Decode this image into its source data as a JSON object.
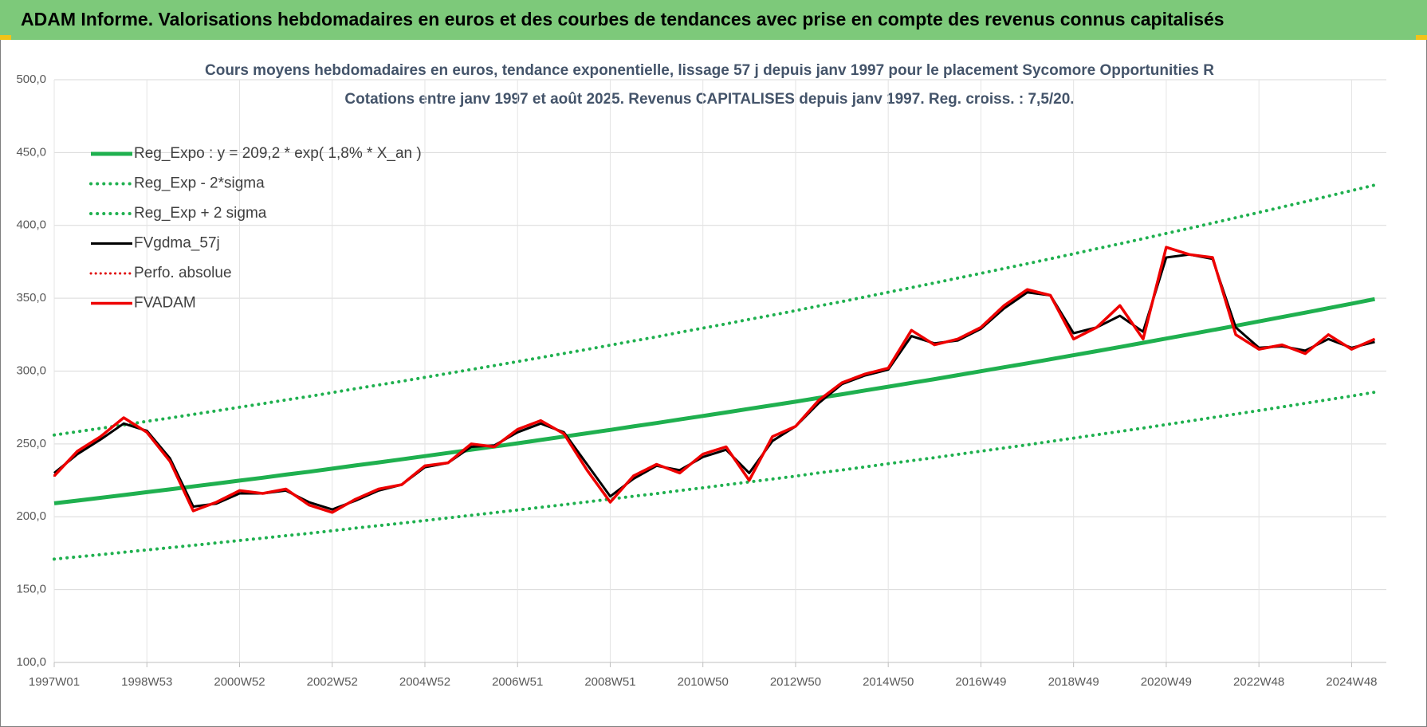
{
  "header": {
    "title": "ADAM Informe. Valorisations hebdomadaires en euros et des courbes de tendances avec prise en compte des revenus connus capitalisés"
  },
  "chart_data": {
    "type": "line",
    "title": "Cours moyens hebdomadaires en euros, tendance exponentielle, lissage 57 j depuis janv 1997  pour le placement Sycomore Opportunities R",
    "subtitle": "Cotations entre janv 1997 et août 2025.  Revenus CAPITALISES depuis janv 1997. Reg. croiss. : 7,5/20.",
    "categories": [
      "1997W01",
      null,
      null,
      null,
      "1998W53",
      null,
      null,
      null,
      "2000W52",
      null,
      null,
      null,
      "2002W52",
      null,
      null,
      null,
      "2004W52",
      null,
      null,
      null,
      "2006W51",
      null,
      null,
      null,
      "2008W51",
      null,
      null,
      null,
      "2010W50",
      null,
      null,
      null,
      "2012W50",
      null,
      null,
      null,
      "2014W50",
      null,
      null,
      null,
      "2016W49",
      null,
      null,
      null,
      "2018W49",
      null,
      null,
      null,
      "2020W49",
      null,
      null,
      null,
      "2022W48",
      null,
      null,
      null,
      "2024W48",
      null
    ],
    "ylim": [
      100,
      500
    ],
    "yticks": [
      {
        "value": 100,
        "label": "100,0"
      },
      {
        "value": 150,
        "label": "150,0"
      },
      {
        "value": 200,
        "label": "200,0"
      },
      {
        "value": 250,
        "label": "250,0"
      },
      {
        "value": 300,
        "label": "300,0"
      },
      {
        "value": 350,
        "label": "350,0"
      },
      {
        "value": 400,
        "label": "400,0"
      },
      {
        "value": 450,
        "label": "450,0"
      },
      {
        "value": 500,
        "label": "500,0"
      }
    ],
    "grid": true,
    "legend": "upper left",
    "series": [
      {
        "name": "Reg_Expo : y = 209,2 * exp( 1,8% *  X_an )",
        "color": "#1fb04f",
        "line_style": "solid",
        "width": 5,
        "values": [
          209.2,
          211.1,
          213.0,
          214.9,
          216.9,
          218.8,
          220.8,
          222.8,
          224.8,
          226.8,
          228.9,
          230.9,
          233.0,
          235.2,
          237.3,
          239.4,
          241.6,
          243.8,
          246.0,
          248.2,
          250.4,
          252.7,
          255.0,
          257.3,
          259.6,
          262.0,
          264.3,
          266.8,
          269.2,
          271.6,
          274.1,
          276.5,
          279.0,
          281.6,
          284.1,
          286.7,
          289.3,
          291.9,
          294.5,
          297.2,
          299.9,
          302.6,
          305.3,
          308.1,
          310.9,
          313.7,
          316.5,
          319.4,
          322.3,
          325.2,
          328.1,
          331.1,
          334.1,
          337.1,
          340.1,
          343.2,
          346.3,
          349.4
        ]
      },
      {
        "name": "Reg_Exp - 2*sigma",
        "color": "#1fb04f",
        "line_style": "dotted",
        "width": 4,
        "values": [
          170.9,
          172.5,
          174.0,
          175.6,
          177.2,
          178.8,
          180.4,
          182.0,
          183.7,
          185.3,
          187.0,
          188.6,
          190.4,
          192.2,
          193.9,
          195.6,
          197.4,
          199.2,
          201.0,
          202.8,
          204.6,
          206.5,
          208.3,
          210.2,
          212.1,
          214.1,
          215.9,
          218.0,
          219.9,
          221.9,
          223.9,
          225.9,
          227.9,
          230.1,
          232.1,
          234.2,
          236.4,
          238.5,
          240.6,
          242.8,
          245.0,
          247.2,
          249.4,
          251.7,
          254.0,
          256.3,
          258.6,
          260.9,
          263.3,
          265.7,
          268.1,
          270.5,
          272.9,
          275.4,
          277.9,
          280.4,
          282.9,
          285.5
        ]
      },
      {
        "name": "Reg_Exp + 2 sigma",
        "color": "#1fb04f",
        "line_style": "dotted",
        "width": 4,
        "values": [
          256.1,
          258.4,
          260.7,
          263.0,
          265.5,
          267.8,
          270.3,
          272.7,
          275.2,
          277.6,
          280.2,
          282.6,
          285.2,
          287.9,
          290.5,
          293.0,
          295.7,
          298.4,
          301.1,
          303.8,
          306.5,
          309.3,
          312.1,
          314.9,
          317.8,
          320.7,
          323.5,
          326.6,
          329.5,
          332.4,
          335.5,
          338.4,
          341.5,
          344.7,
          347.7,
          350.9,
          354.1,
          357.3,
          360.5,
          363.8,
          367.1,
          370.4,
          373.7,
          377.1,
          380.5,
          384.0,
          387.4,
          390.9,
          394.5,
          398.0,
          401.6,
          405.3,
          408.9,
          412.6,
          416.3,
          420.1,
          423.9,
          427.7
        ]
      },
      {
        "name": "FVgdma_57j",
        "color": "#000000",
        "line_style": "solid",
        "width": 3,
        "values": [
          230,
          243,
          253,
          264,
          259,
          240,
          207,
          209,
          216,
          216,
          218,
          210,
          205,
          211,
          218,
          222,
          234,
          237,
          248,
          249,
          258,
          264,
          258,
          236,
          214,
          226,
          235,
          232,
          241,
          246,
          230,
          252,
          262,
          278,
          291,
          297,
          301,
          324,
          319,
          321,
          329,
          343,
          354,
          352,
          326,
          330,
          338,
          327,
          378,
          380,
          377,
          330,
          316,
          317,
          314,
          322,
          316,
          320
        ]
      },
      {
        "name": "Perfo. absolue",
        "color": "#e00000",
        "line_style": "dotted",
        "width": 2,
        "values": [
          228,
          245,
          255,
          268,
          258,
          238,
          204,
          210,
          218,
          216,
          219,
          208,
          203,
          212,
          219,
          222,
          235,
          237,
          250,
          248,
          260,
          266,
          257,
          232,
          210,
          228,
          236,
          230,
          243,
          248,
          225,
          255,
          262,
          280,
          292,
          298,
          302,
          328,
          318,
          322,
          330,
          345,
          356,
          352,
          322,
          330,
          345,
          322,
          385,
          380,
          378,
          325,
          315,
          318,
          312,
          325,
          315,
          322
        ]
      },
      {
        "name": "FVADAM",
        "color": "#ee0000",
        "line_style": "solid",
        "width": 3.5,
        "values": [
          228,
          245,
          255,
          268,
          258,
          238,
          204,
          210,
          218,
          216,
          219,
          208,
          203,
          212,
          219,
          222,
          235,
          237,
          250,
          248,
          260,
          266,
          257,
          232,
          210,
          228,
          236,
          230,
          243,
          248,
          225,
          255,
          262,
          280,
          292,
          298,
          302,
          328,
          318,
          322,
          330,
          345,
          356,
          352,
          322,
          330,
          345,
          322,
          385,
          380,
          378,
          325,
          315,
          318,
          312,
          325,
          315,
          322
        ]
      }
    ]
  }
}
